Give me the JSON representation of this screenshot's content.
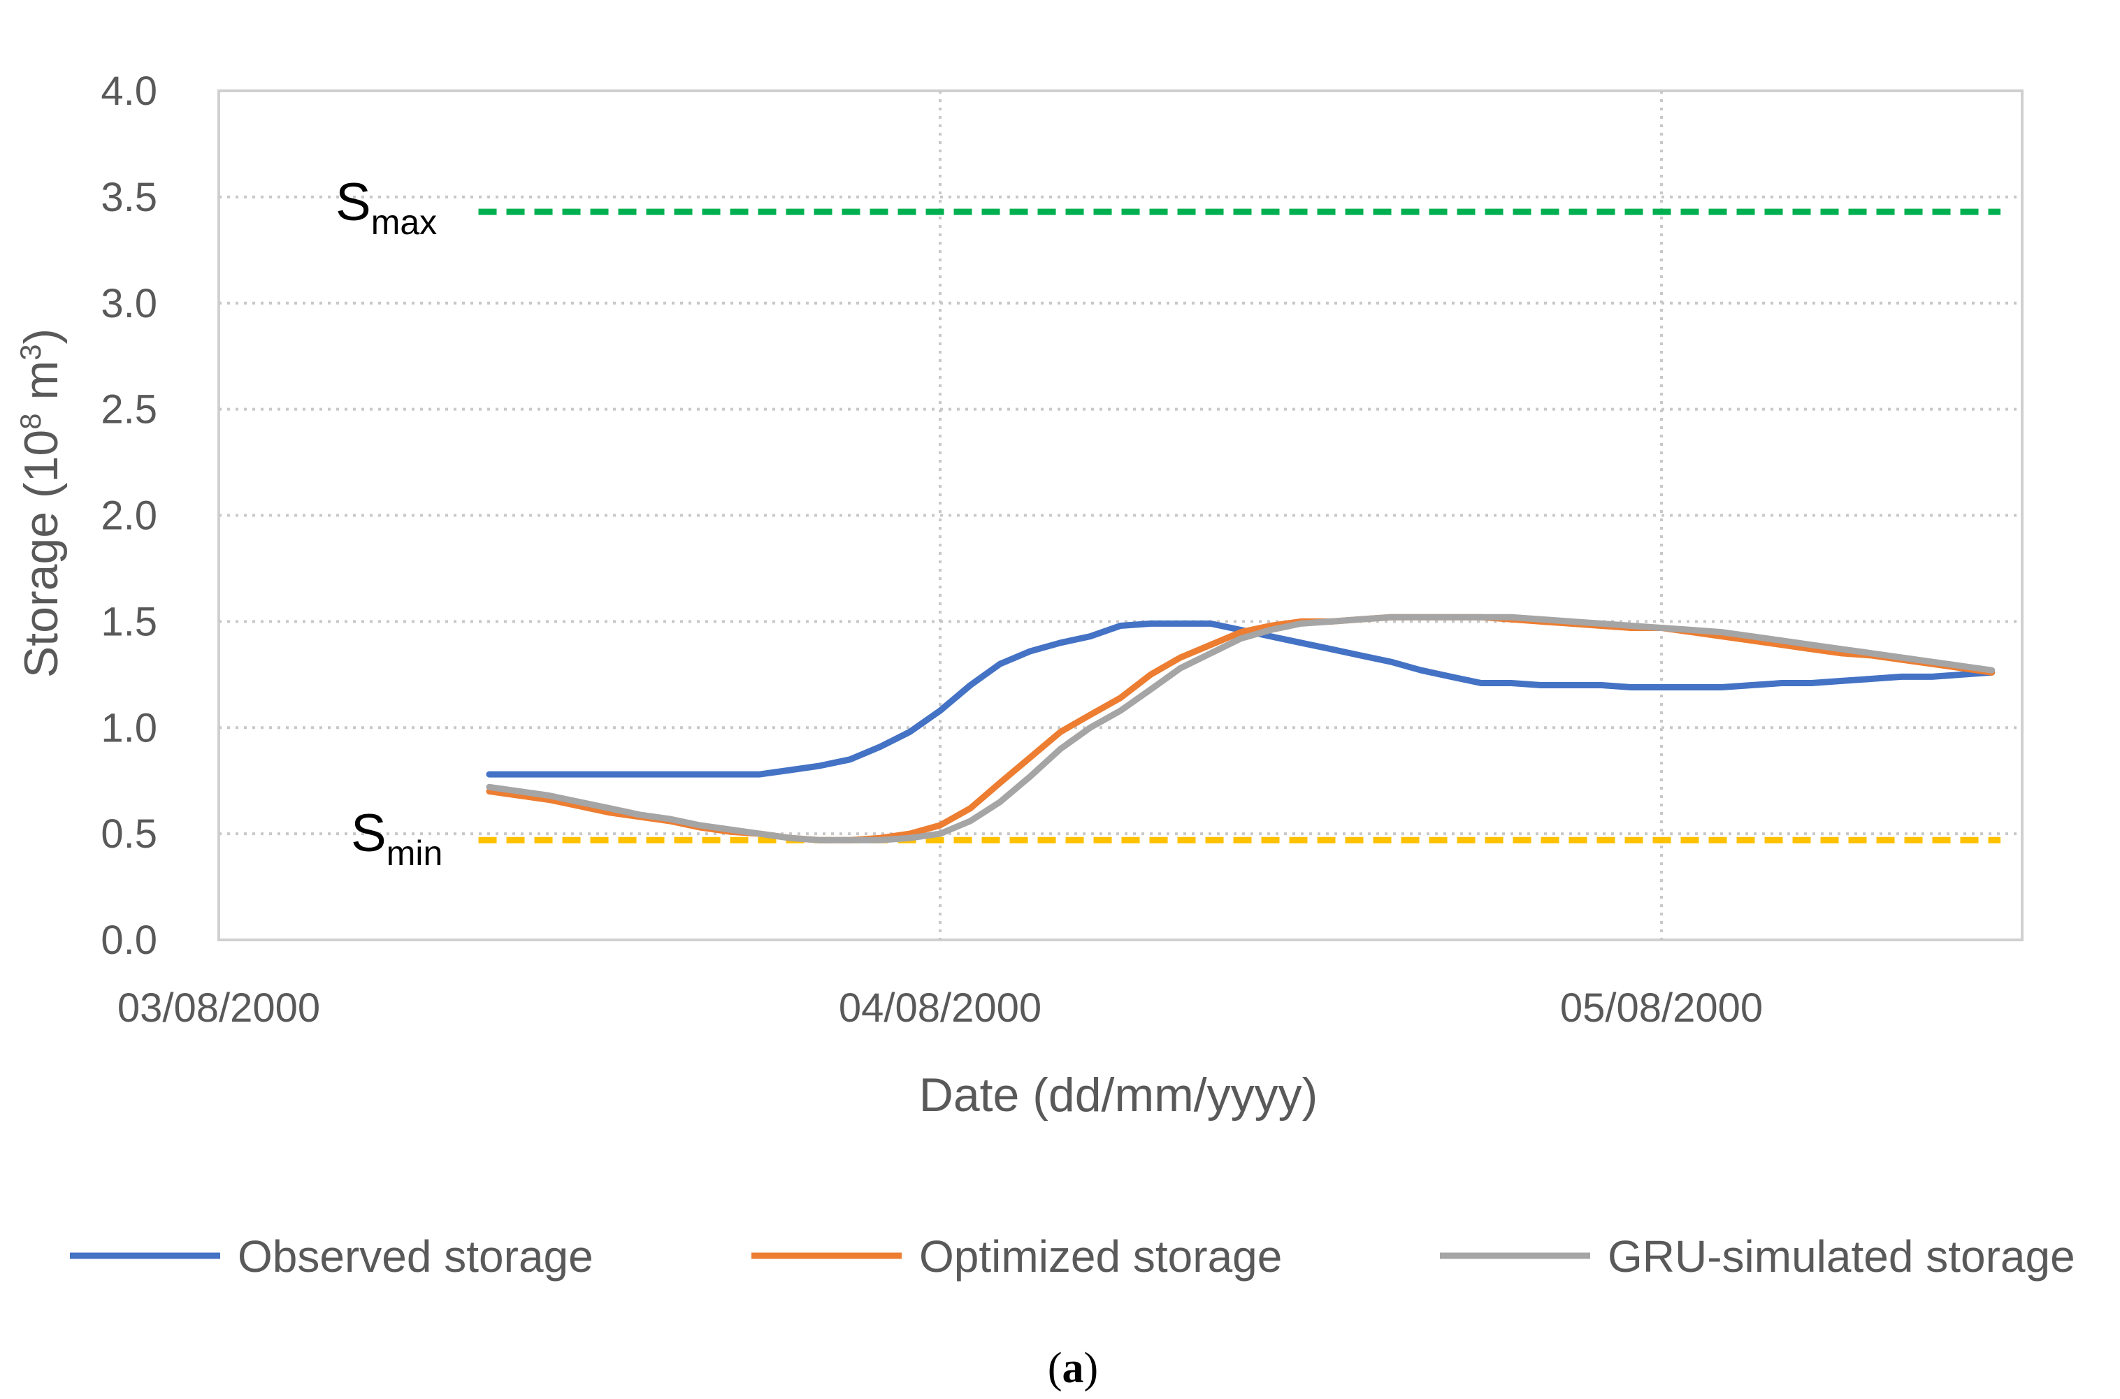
{
  "chart_data": {
    "type": "line",
    "xlabel": "Date (dd/mm/yyyy)",
    "ylabel_main": "Storage (10",
    "ylabel_sup1": "8",
    "ylabel_mid": " m",
    "ylabel_sup2": "3",
    "ylabel_end": ")",
    "ylim": [
      0,
      4
    ],
    "yticks": [
      "0.0",
      "0.5",
      "1.0",
      "1.5",
      "2.0",
      "2.5",
      "3.0",
      "3.5",
      "4.0"
    ],
    "xlim": [
      0,
      2.5
    ],
    "xticks": [
      {
        "value": 0,
        "label": "03/08/2000"
      },
      {
        "value": 1,
        "label": "04/08/2000"
      },
      {
        "value": 2,
        "label": "05/08/2000"
      }
    ],
    "grid": true,
    "reference_lines": [
      {
        "name": "S_max",
        "label_main": "S",
        "label_sub": "max",
        "value": 3.43,
        "x_start": 0.36,
        "x_end": 2.47,
        "color": "#00B050"
      },
      {
        "name": "S_min",
        "label_main": "S",
        "label_sub": "min",
        "value": 0.47,
        "x_start": 0.36,
        "x_end": 2.47,
        "color": "#FFC000"
      }
    ],
    "series": [
      {
        "name": "Observed storage",
        "color": "#4472C4",
        "x": [
          0.375,
          0.417,
          0.458,
          0.5,
          0.542,
          0.583,
          0.625,
          0.667,
          0.708,
          0.75,
          0.792,
          0.833,
          0.875,
          0.917,
          0.958,
          1.0,
          1.042,
          1.083,
          1.125,
          1.167,
          1.208,
          1.25,
          1.292,
          1.333,
          1.375,
          1.417,
          1.458,
          1.5,
          1.542,
          1.583,
          1.625,
          1.667,
          1.708,
          1.75,
          1.792,
          1.833,
          1.875,
          1.917,
          1.958,
          2.0,
          2.042,
          2.083,
          2.125,
          2.167,
          2.208,
          2.25,
          2.292,
          2.333,
          2.375,
          2.417,
          2.458
        ],
        "values": [
          0.78,
          0.78,
          0.78,
          0.78,
          0.78,
          0.78,
          0.78,
          0.78,
          0.78,
          0.78,
          0.8,
          0.82,
          0.85,
          0.91,
          0.98,
          1.08,
          1.2,
          1.3,
          1.36,
          1.4,
          1.43,
          1.48,
          1.49,
          1.49,
          1.49,
          1.46,
          1.43,
          1.4,
          1.37,
          1.34,
          1.31,
          1.27,
          1.24,
          1.21,
          1.21,
          1.2,
          1.2,
          1.2,
          1.19,
          1.19,
          1.19,
          1.19,
          1.2,
          1.21,
          1.21,
          1.22,
          1.23,
          1.24,
          1.24,
          1.25,
          1.26
        ]
      },
      {
        "name": "Optimized storage",
        "color": "#ED7D31",
        "x": [
          0.375,
          0.417,
          0.458,
          0.5,
          0.542,
          0.583,
          0.625,
          0.667,
          0.708,
          0.75,
          0.792,
          0.833,
          0.875,
          0.917,
          0.958,
          1.0,
          1.042,
          1.083,
          1.125,
          1.167,
          1.208,
          1.25,
          1.292,
          1.333,
          1.375,
          1.417,
          1.458,
          1.5,
          1.542,
          1.583,
          1.625,
          1.667,
          1.708,
          1.75,
          1.792,
          1.833,
          1.875,
          1.917,
          1.958,
          2.0,
          2.042,
          2.083,
          2.125,
          2.167,
          2.208,
          2.25,
          2.292,
          2.333,
          2.375,
          2.417,
          2.458
        ],
        "values": [
          0.7,
          0.68,
          0.66,
          0.63,
          0.6,
          0.58,
          0.56,
          0.53,
          0.51,
          0.5,
          0.48,
          0.47,
          0.47,
          0.48,
          0.5,
          0.54,
          0.62,
          0.74,
          0.86,
          0.98,
          1.06,
          1.14,
          1.25,
          1.33,
          1.39,
          1.45,
          1.48,
          1.5,
          1.5,
          1.51,
          1.52,
          1.52,
          1.52,
          1.52,
          1.51,
          1.5,
          1.49,
          1.48,
          1.47,
          1.47,
          1.45,
          1.43,
          1.41,
          1.39,
          1.37,
          1.35,
          1.34,
          1.32,
          1.3,
          1.28,
          1.26
        ]
      },
      {
        "name": "GRU-simulated storage",
        "color": "#A5A5A5",
        "x": [
          0.375,
          0.417,
          0.458,
          0.5,
          0.542,
          0.583,
          0.625,
          0.667,
          0.708,
          0.75,
          0.792,
          0.833,
          0.875,
          0.917,
          0.958,
          1.0,
          1.042,
          1.083,
          1.125,
          1.167,
          1.208,
          1.25,
          1.292,
          1.333,
          1.375,
          1.417,
          1.458,
          1.5,
          1.542,
          1.583,
          1.625,
          1.667,
          1.708,
          1.75,
          1.792,
          1.833,
          1.875,
          1.917,
          1.958,
          2.0,
          2.042,
          2.083,
          2.125,
          2.167,
          2.208,
          2.25,
          2.292,
          2.333,
          2.375,
          2.417,
          2.458
        ],
        "values": [
          0.72,
          0.7,
          0.68,
          0.65,
          0.62,
          0.59,
          0.57,
          0.54,
          0.52,
          0.5,
          0.48,
          0.47,
          0.47,
          0.47,
          0.48,
          0.5,
          0.56,
          0.65,
          0.77,
          0.9,
          1.0,
          1.08,
          1.18,
          1.28,
          1.35,
          1.42,
          1.46,
          1.49,
          1.5,
          1.51,
          1.52,
          1.52,
          1.52,
          1.52,
          1.52,
          1.51,
          1.5,
          1.49,
          1.48,
          1.47,
          1.46,
          1.45,
          1.43,
          1.41,
          1.39,
          1.37,
          1.35,
          1.33,
          1.31,
          1.29,
          1.27
        ]
      }
    ]
  },
  "caption": {
    "open": "(",
    "letter": "a",
    "close": ")"
  }
}
